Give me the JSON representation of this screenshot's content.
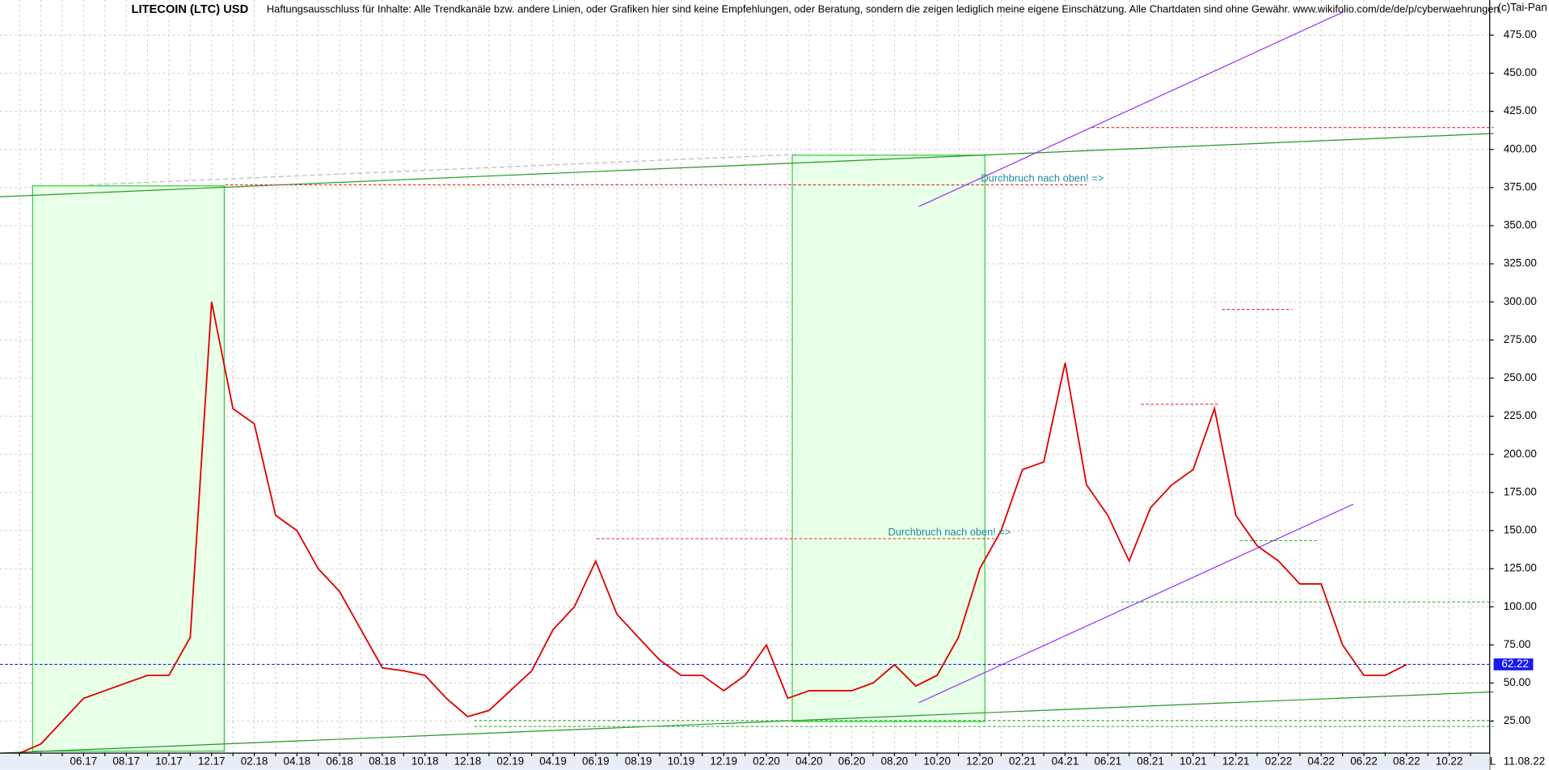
{
  "chart_data": {
    "type": "line",
    "title": "LITECOIN (LTC) USD",
    "subtitle": "Haftungsausschluss für Inhalte: Alle Trendkanäle bzw. andere Linien, oder Grafiken hier sind keine Empfehlungen, oder Beratung, sondern die zeigen lediglich meine eigene Einschätzung. Alle Chartdaten sind ohne Gewähr.  www.wikifolio.com/de/de/p/cyberwaehrungen",
    "copyright": "(c)Tai-Pan",
    "annotations": [
      "Durchbruch nach oben! =>",
      "Durchbruch nach oben! =>"
    ],
    "last_price": 62.22,
    "date_label": "11.08.22",
    "corner_label": "L",
    "categories": [
      null,
      null,
      null,
      "06.17",
      null,
      "08.17",
      null,
      "10.17",
      null,
      "12.17",
      null,
      "02.18",
      null,
      "04.18",
      null,
      "06.18",
      null,
      "08.18",
      null,
      "10.18",
      null,
      "12.18",
      null,
      "02.19",
      null,
      "04.19",
      null,
      "06.19",
      null,
      "08.19",
      null,
      "10.19",
      null,
      "12.19",
      null,
      "02.20",
      null,
      "04.20",
      null,
      "06.20",
      null,
      "08.20",
      null,
      "10.20",
      null,
      "12.20",
      null,
      "02.21",
      null,
      "04.21",
      null,
      "06.21",
      null,
      "08.21",
      null,
      "10.21",
      null,
      "12.21",
      null,
      "02.22",
      null,
      "04.22",
      null,
      "06.22",
      null,
      "08.22",
      null,
      "10.22",
      null
    ],
    "series": [
      {
        "name": "LTC",
        "color": "#e00000",
        "values": [
          4,
          10,
          25,
          40,
          45,
          50,
          55,
          55,
          80,
          300,
          230,
          220,
          160,
          150,
          125,
          110,
          85,
          60,
          58,
          55,
          40,
          28,
          32,
          45,
          58,
          85,
          100,
          130,
          95,
          80,
          65,
          55,
          55,
          45,
          55,
          75,
          40,
          45,
          45,
          45,
          50,
          62,
          48,
          55,
          80,
          125,
          150,
          190,
          195,
          260,
          180,
          160,
          130,
          165,
          180,
          190,
          230,
          160,
          140,
          130,
          115,
          115,
          75,
          55,
          55,
          62,
          null,
          null,
          null
        ]
      }
    ],
    "ylim": [
      4,
      498
    ],
    "yticks": [
      {
        "value": 25,
        "label": "25.00"
      },
      {
        "value": 50,
        "label": "50.00"
      },
      {
        "value": 75,
        "label": "75.00"
      },
      {
        "value": 100,
        "label": "100.00"
      },
      {
        "value": 125,
        "label": "125.00"
      },
      {
        "value": 150,
        "label": "150.00"
      },
      {
        "value": 175,
        "label": "175.00"
      },
      {
        "value": 200,
        "label": "200.00"
      },
      {
        "value": 225,
        "label": "225.00"
      },
      {
        "value": 250,
        "label": "250.00"
      },
      {
        "value": 275,
        "label": "275.00"
      },
      {
        "value": 300,
        "label": "300.00"
      },
      {
        "value": 325,
        "label": "325.00"
      },
      {
        "value": 350,
        "label": "350.00"
      },
      {
        "value": 375,
        "label": "375.00"
      },
      {
        "value": 400,
        "label": "400.00"
      },
      {
        "value": 425,
        "label": "425.00"
      },
      {
        "value": 450,
        "label": "450.00"
      },
      {
        "value": 475,
        "label": "475.00"
      }
    ],
    "grid": true
  }
}
